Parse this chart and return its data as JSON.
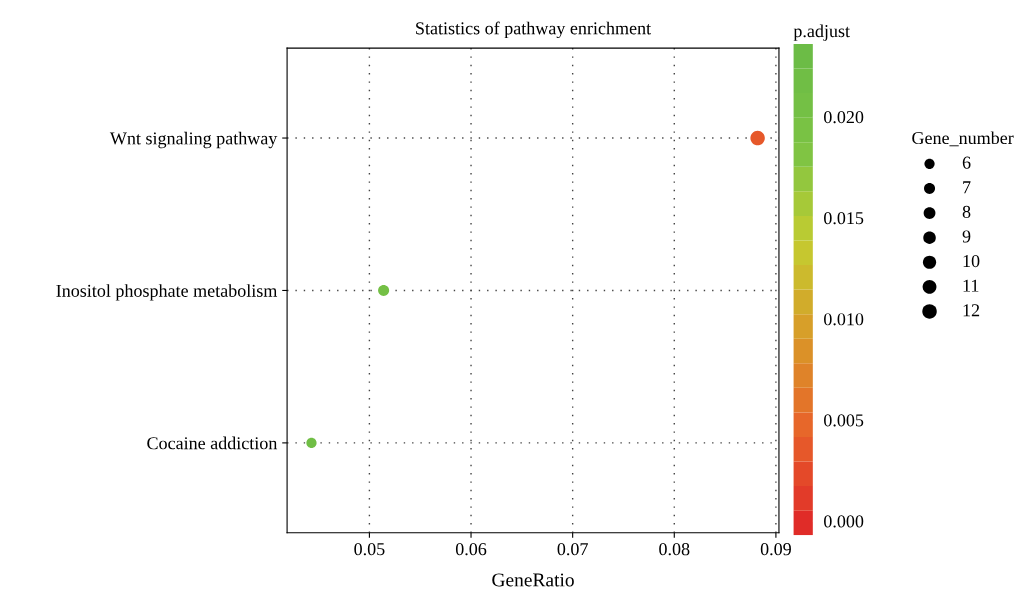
{
  "chart_data": {
    "type": "bubble",
    "title": "Statistics of pathway enrichment",
    "xlabel": "GeneRatio",
    "clabel": "p.adjust",
    "legend_title": "Gene_number",
    "categories": [
      "Wnt signaling pathway",
      "Inositol phosphate metabolism",
      "Cocaine addiction"
    ],
    "values": [
      0.0882,
      0.0514,
      0.0443
    ],
    "sizes": [
      12,
      7,
      6
    ],
    "cvalues": [
      0.003,
      0.021,
      0.022
    ],
    "size_legend": [
      6,
      7,
      8,
      9,
      10,
      11,
      12
    ],
    "orientation": "horizontal",
    "xlim": [
      0.0419,
      0.0903
    ],
    "xticks": [
      0.05,
      0.06,
      0.07,
      0.08,
      0.09
    ],
    "clim": [
      -0.0007,
      0.0236
    ],
    "cticks": [
      {
        "value": 0.0,
        "label": "0.000"
      },
      {
        "value": 0.005,
        "label": "0.005"
      },
      {
        "value": 0.01,
        "label": "0.010"
      },
      {
        "value": 0.015,
        "label": "0.015"
      },
      {
        "value": 0.02,
        "label": "0.020"
      }
    ],
    "grid": true
  }
}
